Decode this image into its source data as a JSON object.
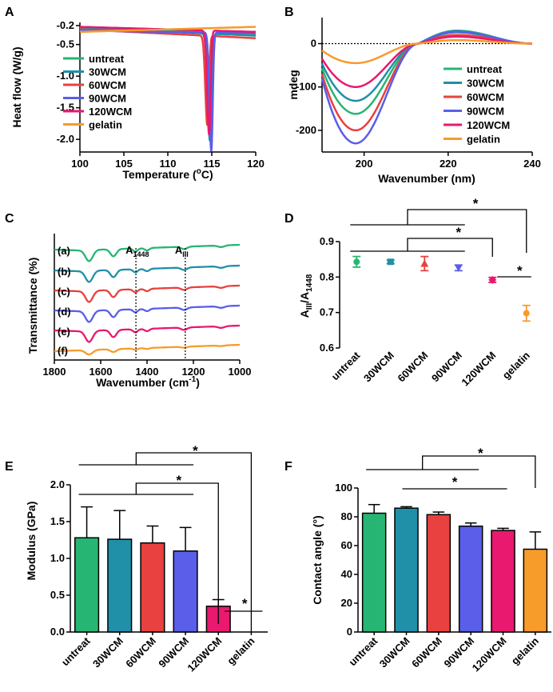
{
  "colors": {
    "untreat": "#27b573",
    "30WCM": "#1f90a8",
    "60WCM": "#e8413f",
    "90WCM": "#5a5ee8",
    "120WCM": "#e8196e",
    "gelatin": "#f79b2b"
  },
  "chart_data": [
    {
      "panel": "A",
      "type": "line",
      "xlabel_main": "Temperature (",
      "xlabel_sup": "o",
      "xlabel_tail": "C)",
      "ylabel": "Heat flow (W/g)",
      "xlim": [
        100,
        120
      ],
      "ylim": [
        -2.2,
        -0.15
      ],
      "xticks": [
        {
          "v": 100,
          "l": "100"
        },
        {
          "v": 105,
          "l": "105"
        },
        {
          "v": 110,
          "l": "110"
        },
        {
          "v": 115,
          "l": "115"
        },
        {
          "v": 120,
          "l": "120"
        }
      ],
      "yticks": [
        {
          "v": -0.2,
          "l": "-0.2"
        },
        {
          "v": -0.5,
          "l": "-0.5"
        },
        {
          "v": -1.0,
          "l": "-1.0"
        },
        {
          "v": -1.5,
          "l": "-1.5"
        },
        {
          "v": -2.0,
          "l": "-2.0"
        }
      ],
      "legend": [
        "untreat",
        "30WCM",
        "60WCM",
        "90WCM",
        "120WCM",
        "gelatin"
      ],
      "series": [
        {
          "name": "untreat",
          "base0": -0.22,
          "base1": -0.35,
          "peak": 114.9,
          "depth": -1.62,
          "width": 0.28
        },
        {
          "name": "30WCM",
          "base0": -0.24,
          "base1": -0.36,
          "peak": 114.8,
          "depth": -1.7,
          "width": 0.3
        },
        {
          "name": "60WCM",
          "base0": -0.26,
          "base1": -0.4,
          "peak": 114.5,
          "depth": -1.42,
          "width": 0.27
        },
        {
          "name": "90WCM",
          "base0": -0.28,
          "base1": -0.32,
          "peak": 114.95,
          "depth": -1.88,
          "width": 0.25
        },
        {
          "name": "120WCM",
          "base0": -0.22,
          "base1": -0.3,
          "peak": 114.7,
          "depth": -1.65,
          "width": 0.26
        },
        {
          "name": "gelatin",
          "base0": -0.3,
          "base1": -0.22,
          "peak": 115,
          "depth": 0,
          "width": 1
        }
      ]
    },
    {
      "panel": "B",
      "type": "line",
      "xlabel": "Wavenumber (nm)",
      "ylabel": "mdeg",
      "xlim": [
        190,
        240
      ],
      "ylim": [
        -250,
        60
      ],
      "xticks": [
        {
          "v": 200,
          "l": "200"
        },
        {
          "v": 220,
          "l": "220"
        },
        {
          "v": 240,
          "l": "240"
        }
      ],
      "yticks": [
        {
          "v": 0,
          "l": "0"
        },
        {
          "v": -100,
          "l": "-100"
        },
        {
          "v": -200,
          "l": "-200"
        }
      ],
      "legend": [
        "untreat",
        "30WCM",
        "60WCM",
        "90WCM",
        "120WCM",
        "gelatin"
      ],
      "series": [
        {
          "name": "untreat",
          "min": -162,
          "pos": 30
        },
        {
          "name": "30WCM",
          "min": -132,
          "pos": 26
        },
        {
          "name": "60WCM",
          "min": -200,
          "pos": 20
        },
        {
          "name": "90WCM",
          "min": -230,
          "pos": 28
        },
        {
          "name": "120WCM",
          "min": -100,
          "pos": 16
        },
        {
          "name": "gelatin",
          "min": -45,
          "pos": 8
        }
      ]
    },
    {
      "panel": "C",
      "type": "line",
      "xlabel_main": "Wavenumber (cm",
      "xlabel_sup": "-1",
      "xlabel_tail": ")",
      "ylabel": "Transmittance (%)",
      "xlim": [
        1800,
        1000
      ],
      "xticks": [
        {
          "v": 1800,
          "l": "1800"
        },
        {
          "v": 1600,
          "l": "1600"
        },
        {
          "v": 1400,
          "l": "1400"
        },
        {
          "v": 1200,
          "l": "1200"
        },
        {
          "v": 1000,
          "l": "1000"
        }
      ],
      "markers": [
        {
          "v": 1448,
          "main": "A",
          "sub": "1448"
        },
        {
          "v": 1235,
          "main": "A",
          "sub": "III"
        }
      ],
      "series": [
        {
          "name": "untreat",
          "label": "(a)"
        },
        {
          "name": "30WCM",
          "label": "(b)"
        },
        {
          "name": "60WCM",
          "label": "(c)"
        },
        {
          "name": "90WCM",
          "label": "(d)"
        },
        {
          "name": "120WCM",
          "label": "(e)"
        },
        {
          "name": "gelatin",
          "label": "(f)"
        }
      ]
    },
    {
      "panel": "D",
      "type": "scatter",
      "ylabel_main": "A",
      "ylabel_sub1": "III",
      "ylabel_mid": "/A",
      "ylabel_sub2": "1448",
      "ylim": [
        0.6,
        0.9
      ],
      "yticks": [
        {
          "v": 0.6,
          "l": "0.6"
        },
        {
          "v": 0.7,
          "l": "0.7"
        },
        {
          "v": 0.8,
          "l": "0.8"
        },
        {
          "v": 0.9,
          "l": "0.9"
        }
      ],
      "categories": [
        "untreat",
        "30WCM",
        "60WCM",
        "90WCM",
        "120WCM",
        "gelatin"
      ],
      "values": [
        0.843,
        0.843,
        0.838,
        0.826,
        0.792,
        0.698
      ],
      "errors": [
        0.015,
        0.005,
        0.02,
        0.008,
        0.007,
        0.022
      ],
      "markers": [
        "circle",
        "square",
        "tri-up",
        "tri-down",
        "diamond",
        "circle"
      ],
      "significance": [
        "*",
        "*",
        "*"
      ]
    },
    {
      "panel": "E",
      "type": "bar",
      "ylabel": "Modulus  (GPa)",
      "ylim": [
        0,
        2.0
      ],
      "yticks": [
        {
          "v": 0,
          "l": "0.0"
        },
        {
          "v": 0.5,
          "l": "0.5"
        },
        {
          "v": 1.0,
          "l": "1.0"
        },
        {
          "v": 1.5,
          "l": "1.5"
        },
        {
          "v": 2.0,
          "l": "2.0"
        }
      ],
      "categories": [
        "untreat",
        "30WCM",
        "60WCM",
        "90WCM",
        "120WCM",
        "gelatin"
      ],
      "values": [
        1.28,
        1.26,
        1.21,
        1.1,
        0.35,
        0
      ],
      "errors": [
        0.42,
        0.39,
        0.23,
        0.32,
        0.09,
        0
      ],
      "significance": [
        "*",
        "*",
        "*"
      ]
    },
    {
      "panel": "F",
      "type": "bar",
      "ylabel": "Contact angle (°)",
      "ylim": [
        0,
        100
      ],
      "yticks": [
        {
          "v": 0,
          "l": "0"
        },
        {
          "v": 20,
          "l": "20"
        },
        {
          "v": 40,
          "l": "40"
        },
        {
          "v": 60,
          "l": "60"
        },
        {
          "v": 80,
          "l": "80"
        },
        {
          "v": 100,
          "l": "100"
        }
      ],
      "categories": [
        "untreat",
        "30WCM",
        "60WCM",
        "90WCM",
        "120WCM",
        "gelatin"
      ],
      "values": [
        82.5,
        86,
        81.5,
        73.5,
        70.5,
        57.5
      ],
      "errors": [
        6,
        1,
        1.8,
        2.2,
        1.5,
        12
      ],
      "significance": [
        "*",
        "*"
      ]
    }
  ]
}
